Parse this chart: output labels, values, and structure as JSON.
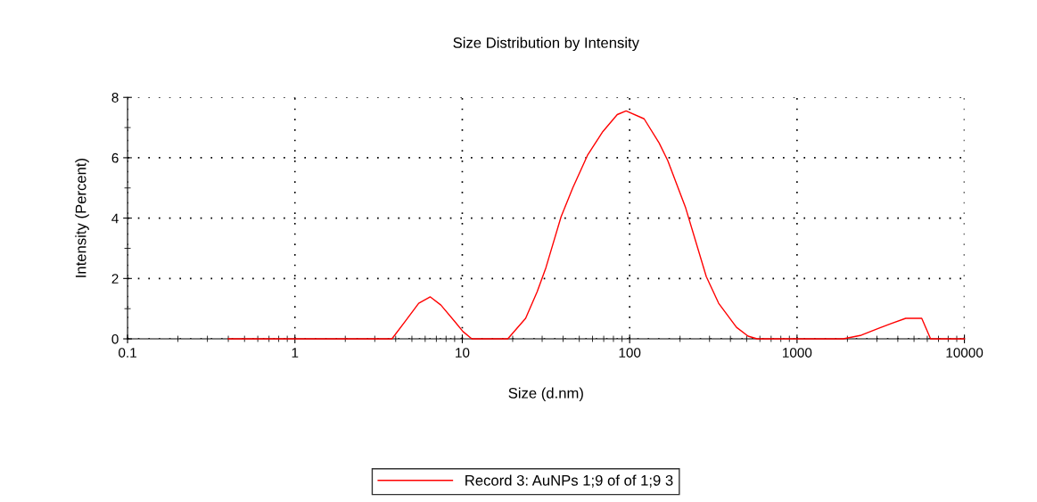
{
  "chart_data": {
    "type": "line",
    "title": "Size Distribution by Intensity",
    "xlabel": "Size (d.nm)",
    "ylabel": "Intensity (Percent)",
    "log": "x",
    "xlim": [
      0.1,
      10000
    ],
    "xticks": [
      0.1,
      1,
      10,
      100,
      1000,
      10000
    ],
    "ylim": [
      0,
      8
    ],
    "yticks": [
      0,
      2,
      4,
      6,
      8
    ],
    "grid": true,
    "legend": "bottom",
    "marker": "none",
    "line_style": "solid",
    "series": [
      {
        "name": "Record 3: AuNPs 1;9 of of 1;9 3",
        "color": "#ff0000",
        "x": [
          0.4,
          3.8,
          4.57,
          5.49,
          6.44,
          7.45,
          8.96,
          10.1,
          11.4,
          18.7,
          23.9,
          28.0,
          31.6,
          38.9,
          45.7,
          56.2,
          69.2,
          84.3,
          95.2,
          122,
          150,
          169,
          216,
          287,
          340,
          435,
          510,
          577,
          1890,
          2420,
          3080,
          3620,
          4460,
          5560,
          6280,
          10000
        ],
        "values": [
          0,
          0,
          0.59,
          1.18,
          1.39,
          1.12,
          0.59,
          0.24,
          0,
          0,
          0.68,
          1.56,
          2.36,
          4.04,
          5.0,
          6.1,
          6.87,
          7.43,
          7.55,
          7.29,
          6.49,
          5.9,
          4.34,
          2.06,
          1.18,
          0.38,
          0.09,
          0,
          0,
          0.12,
          0.35,
          0.5,
          0.68,
          0.68,
          0,
          0
        ]
      }
    ]
  }
}
